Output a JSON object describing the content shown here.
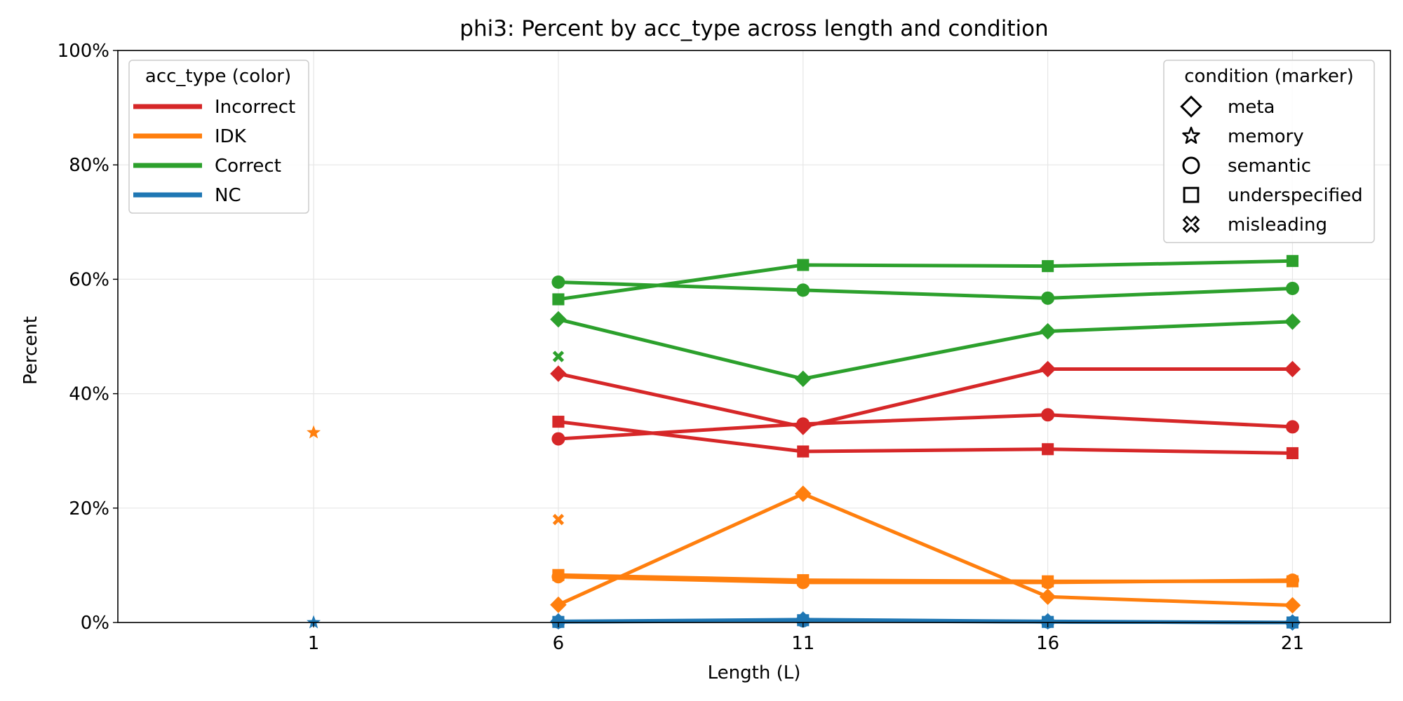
{
  "chart_data": {
    "type": "line",
    "title": "phi3: Percent by acc_type across length and condition",
    "xlabel": "Length (L)",
    "ylabel": "Percent",
    "x_ticks": [
      1,
      6,
      11,
      16,
      21
    ],
    "x_tick_labels": [
      "1",
      "6",
      "11",
      "16",
      "21"
    ],
    "xlim": [
      -3,
      23
    ],
    "ylim": [
      0,
      100
    ],
    "y_ticks": [
      0,
      20,
      40,
      60,
      80,
      100
    ],
    "y_tick_labels": [
      "0%",
      "20%",
      "40%",
      "60%",
      "80%",
      "100%"
    ],
    "grid": true,
    "colors": {
      "Incorrect": "#d62728",
      "IDK": "#ff7f0e",
      "Correct": "#2ca02c",
      "NC": "#1f77b4"
    },
    "legend_color": {
      "title": "acc_type (color)",
      "placement": "top-left",
      "entries": [
        "Incorrect",
        "IDK",
        "Correct",
        "NC"
      ]
    },
    "legend_marker": {
      "title": "condition (marker)",
      "placement": "top-right",
      "entries": [
        {
          "label": "meta",
          "marker": "diamond"
        },
        {
          "label": "memory",
          "marker": "star"
        },
        {
          "label": "semantic",
          "marker": "circle"
        },
        {
          "label": "underspecified",
          "marker": "square"
        },
        {
          "label": "misleading",
          "marker": "x"
        }
      ]
    },
    "series": [
      {
        "acc_type": "Correct",
        "condition": "underspecified",
        "x": [
          6,
          11,
          16,
          21
        ],
        "values": [
          56.5,
          62.5,
          62.3,
          63.2
        ]
      },
      {
        "acc_type": "Correct",
        "condition": "semantic",
        "x": [
          6,
          11,
          16,
          21
        ],
        "values": [
          59.5,
          58.1,
          56.7,
          58.4
        ]
      },
      {
        "acc_type": "Correct",
        "condition": "meta",
        "x": [
          6,
          11,
          16,
          21
        ],
        "values": [
          53.0,
          42.6,
          50.9,
          52.6
        ]
      },
      {
        "acc_type": "Correct",
        "condition": "misleading",
        "x": [
          6
        ],
        "values": [
          46.5
        ]
      },
      {
        "acc_type": "Incorrect",
        "condition": "meta",
        "x": [
          6,
          11,
          16,
          21
        ],
        "values": [
          43.5,
          34.2,
          44.3,
          44.3
        ]
      },
      {
        "acc_type": "Incorrect",
        "condition": "underspecified",
        "x": [
          6,
          11,
          16,
          21
        ],
        "values": [
          35.1,
          29.9,
          30.3,
          29.6
        ]
      },
      {
        "acc_type": "Incorrect",
        "condition": "semantic",
        "x": [
          6,
          11,
          16,
          21
        ],
        "values": [
          32.1,
          34.7,
          36.3,
          34.2
        ]
      },
      {
        "acc_type": "IDK",
        "condition": "memory",
        "x": [
          1
        ],
        "values": [
          33.2
        ]
      },
      {
        "acc_type": "IDK",
        "condition": "meta",
        "x": [
          6,
          11,
          16,
          21
        ],
        "values": [
          3.1,
          22.5,
          4.5,
          3.0
        ]
      },
      {
        "acc_type": "IDK",
        "condition": "underspecified",
        "x": [
          6,
          11,
          16,
          21
        ],
        "values": [
          8.3,
          7.4,
          7.2,
          7.2
        ]
      },
      {
        "acc_type": "IDK",
        "condition": "semantic",
        "x": [
          6,
          11,
          16,
          21
        ],
        "values": [
          8.0,
          7.0,
          7.0,
          7.4
        ]
      },
      {
        "acc_type": "IDK",
        "condition": "misleading",
        "x": [
          6
        ],
        "values": [
          18.0
        ]
      },
      {
        "acc_type": "NC",
        "condition": "memory",
        "x": [
          1
        ],
        "values": [
          0.0
        ]
      },
      {
        "acc_type": "NC",
        "condition": "meta",
        "x": [
          6,
          11,
          16,
          21
        ],
        "values": [
          0.2,
          0.5,
          0.2,
          0.0
        ]
      },
      {
        "acc_type": "NC",
        "condition": "underspecified",
        "x": [
          6,
          11,
          16,
          21
        ],
        "values": [
          0.1,
          0.4,
          0.1,
          0.0
        ]
      },
      {
        "acc_type": "NC",
        "condition": "semantic",
        "x": [
          6,
          11,
          16,
          21
        ],
        "values": [
          0.1,
          0.3,
          0.1,
          0.0
        ]
      }
    ]
  }
}
